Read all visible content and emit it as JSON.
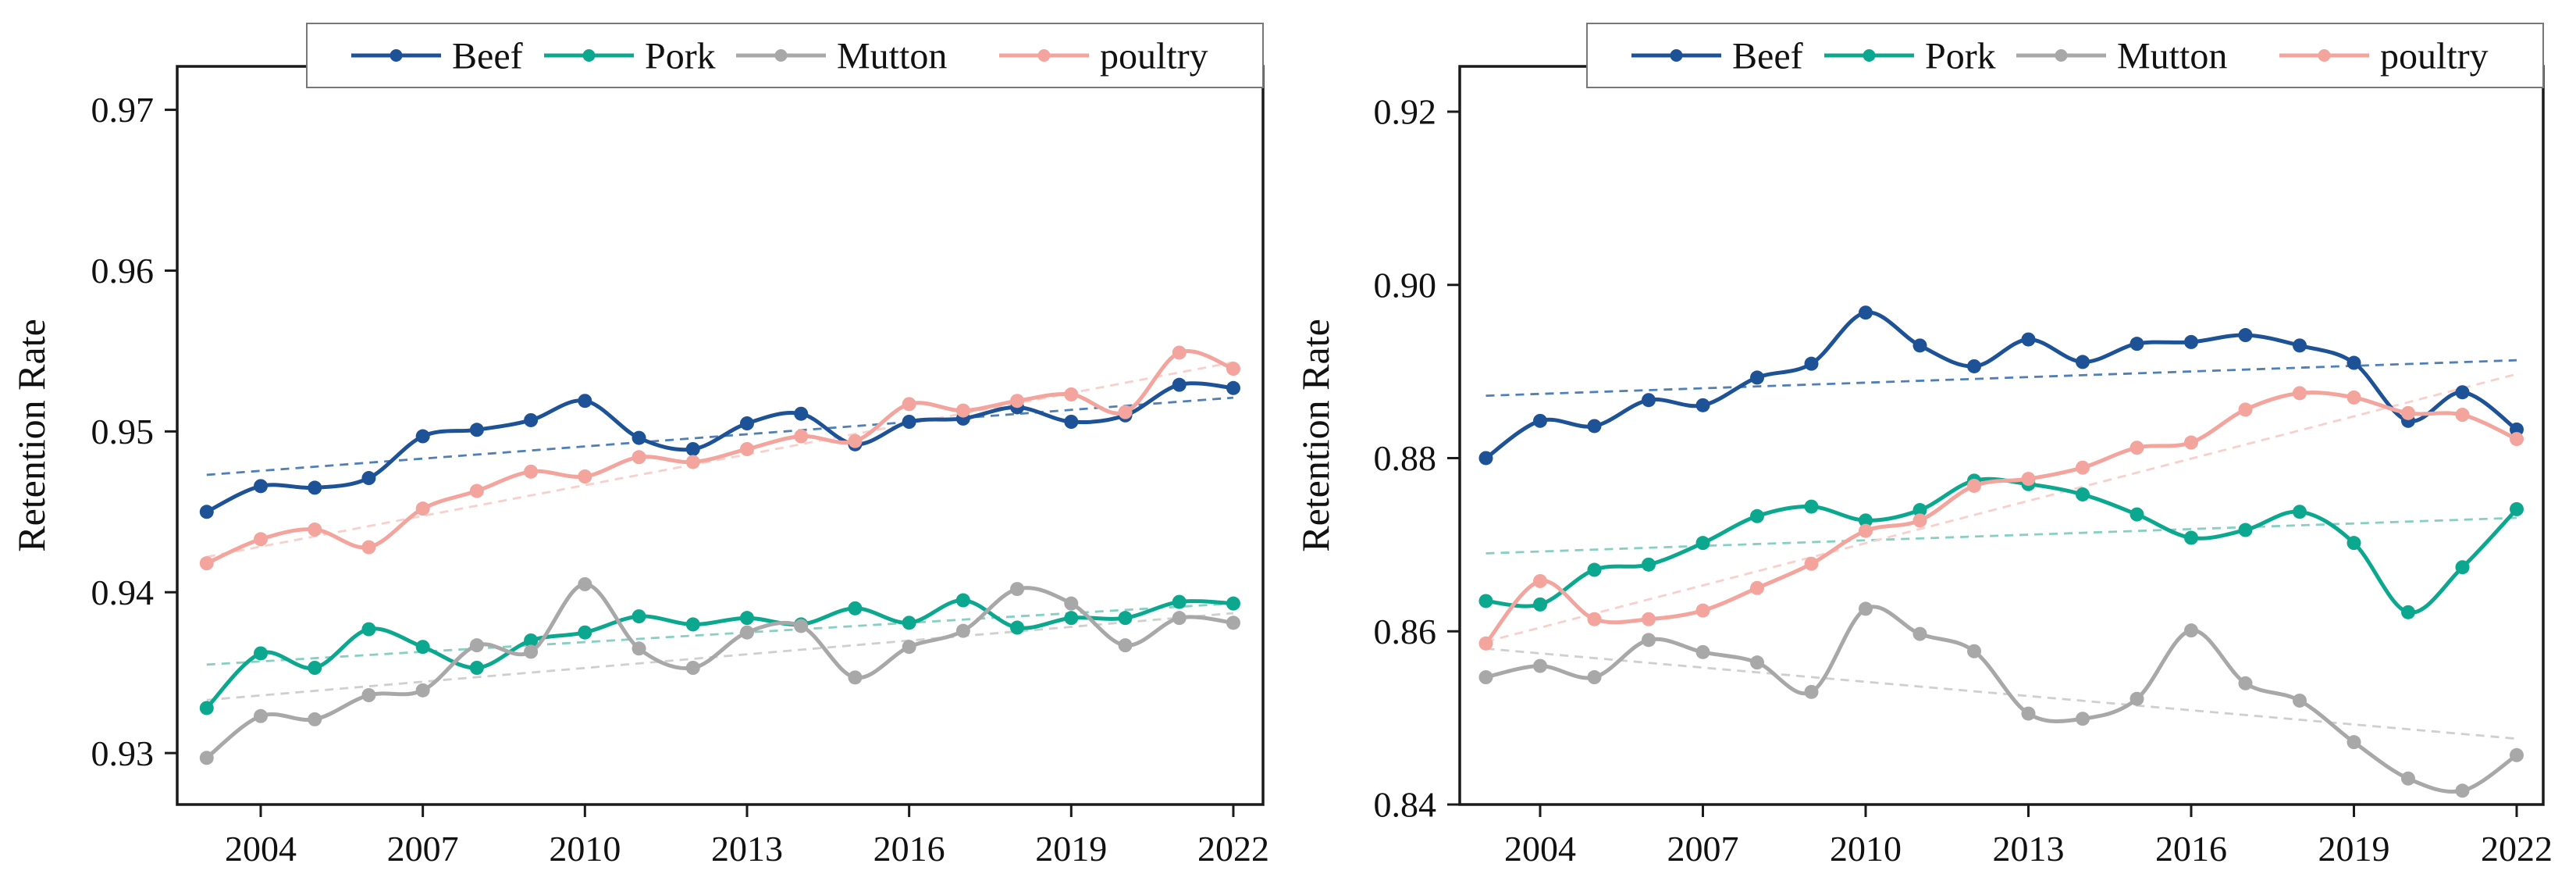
{
  "figure_title": "",
  "ylabel": "Retention Rate",
  "legend": {
    "labels": [
      "Beef",
      "Pork",
      "Mutton",
      "poultry"
    ]
  },
  "colors": {
    "beef": "#1d5296",
    "pork": "#0ba78f",
    "mutton": "#a8a8a8",
    "poultry": "#f3a49d",
    "beef_trend": "#4f7fb5",
    "pork_trend": "#86cfc2",
    "mutton_trend": "#cfcfcf",
    "poultry_trend": "#f8d0cb",
    "axis": "#1a1a1a",
    "background": "#ffffff"
  },
  "chart_data": [
    {
      "type": "line",
      "panel": "left",
      "title": "",
      "xlabel": "",
      "ylabel": "Retention Rate",
      "x": [
        2003,
        2004,
        2005,
        2006,
        2007,
        2008,
        2009,
        2010,
        2011,
        2012,
        2013,
        2014,
        2015,
        2016,
        2017,
        2018,
        2019,
        2020,
        2021,
        2022
      ],
      "xtick_labels": [
        "2004",
        "2007",
        "2010",
        "2013",
        "2016",
        "2019",
        "2022"
      ],
      "xticks": [
        2004,
        2007,
        2010,
        2013,
        2016,
        2019,
        2022
      ],
      "ytick_labels": [
        "0.97",
        "0.96",
        "0.95",
        "0.94",
        "0.93"
      ],
      "yticks": [
        0.97,
        0.96,
        0.95,
        0.94,
        0.93
      ],
      "ylim": [
        0.9268,
        0.9727
      ],
      "grid": false,
      "legend_position": "top",
      "series": [
        {
          "name": "Beef",
          "color_key": "beef",
          "trend_color_key": "beef_trend",
          "values": [
            0.945,
            0.9466,
            0.9465,
            0.9471,
            0.9497,
            0.9501,
            0.9507,
            0.9519,
            0.9496,
            0.9489,
            0.9505,
            0.9511,
            0.9492,
            0.9506,
            0.9508,
            0.9515,
            0.9506,
            0.951,
            0.9529,
            0.9527
          ],
          "trend": [
            0.9473,
            0.9521
          ]
        },
        {
          "name": "Pork",
          "color_key": "pork",
          "trend_color_key": "pork_trend",
          "values": [
            0.9328,
            0.9362,
            0.9353,
            0.9377,
            0.9366,
            0.9353,
            0.937,
            0.9375,
            0.9385,
            0.938,
            0.9384,
            0.938,
            0.939,
            0.9381,
            0.9395,
            0.9378,
            0.9384,
            0.9384,
            0.9394,
            0.9393
          ],
          "trend": [
            0.9355,
            0.9393
          ]
        },
        {
          "name": "Mutton",
          "color_key": "mutton",
          "trend_color_key": "mutton_trend",
          "values": [
            0.9297,
            0.9323,
            0.9321,
            0.9336,
            0.9339,
            0.9367,
            0.9363,
            0.9405,
            0.9365,
            0.9353,
            0.9375,
            0.9379,
            0.9347,
            0.9366,
            0.9376,
            0.9402,
            0.9393,
            0.9367,
            0.9384,
            0.9381
          ],
          "trend": [
            0.9333,
            0.9387
          ]
        },
        {
          "name": "poultry",
          "color_key": "poultry",
          "trend_color_key": "poultry_trend",
          "values": [
            0.9418,
            0.9433,
            0.9439,
            0.9428,
            0.9452,
            0.9463,
            0.9475,
            0.9472,
            0.9484,
            0.9481,
            0.9489,
            0.9497,
            0.9494,
            0.9517,
            0.9513,
            0.9519,
            0.9523,
            0.9512,
            0.9549,
            0.9539
          ],
          "trend": [
            0.9422,
            0.9543
          ]
        }
      ]
    },
    {
      "type": "line",
      "panel": "right",
      "title": "",
      "xlabel": "",
      "ylabel": "Retention Rate",
      "x": [
        2003,
        2004,
        2005,
        2006,
        2007,
        2008,
        2009,
        2010,
        2011,
        2012,
        2013,
        2014,
        2015,
        2016,
        2017,
        2018,
        2019,
        2020,
        2021,
        2022
      ],
      "xtick_labels": [
        "2004",
        "2007",
        "2010",
        "2013",
        "2016",
        "2019",
        "2022"
      ],
      "xticks": [
        2004,
        2007,
        2010,
        2013,
        2016,
        2019,
        2022
      ],
      "ytick_labels": [
        "0.92",
        "0.90",
        "0.88",
        "0.86",
        "0.84"
      ],
      "yticks": [
        0.92,
        0.9,
        0.88,
        0.86,
        0.84
      ],
      "ylim": [
        0.84,
        0.92523
      ],
      "grid": false,
      "legend_position": "top",
      "series": [
        {
          "name": "Beef",
          "color_key": "beef",
          "trend_color_key": "beef_trend",
          "values": [
            0.88,
            0.8843,
            0.8837,
            0.8867,
            0.8861,
            0.8893,
            0.8909,
            0.8968,
            0.893,
            0.8906,
            0.8937,
            0.8911,
            0.8932,
            0.8934,
            0.8942,
            0.893,
            0.891,
            0.8843,
            0.8876,
            0.8833
          ],
          "trend": [
            0.8872,
            0.8913
          ]
        },
        {
          "name": "Pork",
          "color_key": "pork",
          "trend_color_key": "pork_trend",
          "values": [
            0.8635,
            0.8631,
            0.8671,
            0.8677,
            0.8702,
            0.8733,
            0.8744,
            0.8728,
            0.874,
            0.8774,
            0.877,
            0.8758,
            0.8735,
            0.8708,
            0.8717,
            0.8738,
            0.8702,
            0.8622,
            0.8674,
            0.8741
          ],
          "trend": [
            0.869,
            0.8731
          ]
        },
        {
          "name": "Mutton",
          "color_key": "mutton",
          "trend_color_key": "mutton_trend",
          "values": [
            0.8547,
            0.856,
            0.8547,
            0.859,
            0.8576,
            0.8564,
            0.853,
            0.8626,
            0.8597,
            0.8577,
            0.8505,
            0.8499,
            0.8522,
            0.8601,
            0.854,
            0.852,
            0.8472,
            0.843,
            0.8416,
            0.8457
          ],
          "trend": [
            0.858,
            0.8476
          ]
        },
        {
          "name": "poultry",
          "color_key": "poultry",
          "trend_color_key": "poultry_trend",
          "values": [
            0.8586,
            0.8658,
            0.8614,
            0.8614,
            0.8624,
            0.865,
            0.8678,
            0.8716,
            0.8728,
            0.8768,
            0.8776,
            0.8789,
            0.8812,
            0.8818,
            0.8856,
            0.8875,
            0.887,
            0.8852,
            0.885,
            0.8822
          ],
          "trend": [
            0.8588,
            0.8897
          ]
        }
      ]
    }
  ]
}
